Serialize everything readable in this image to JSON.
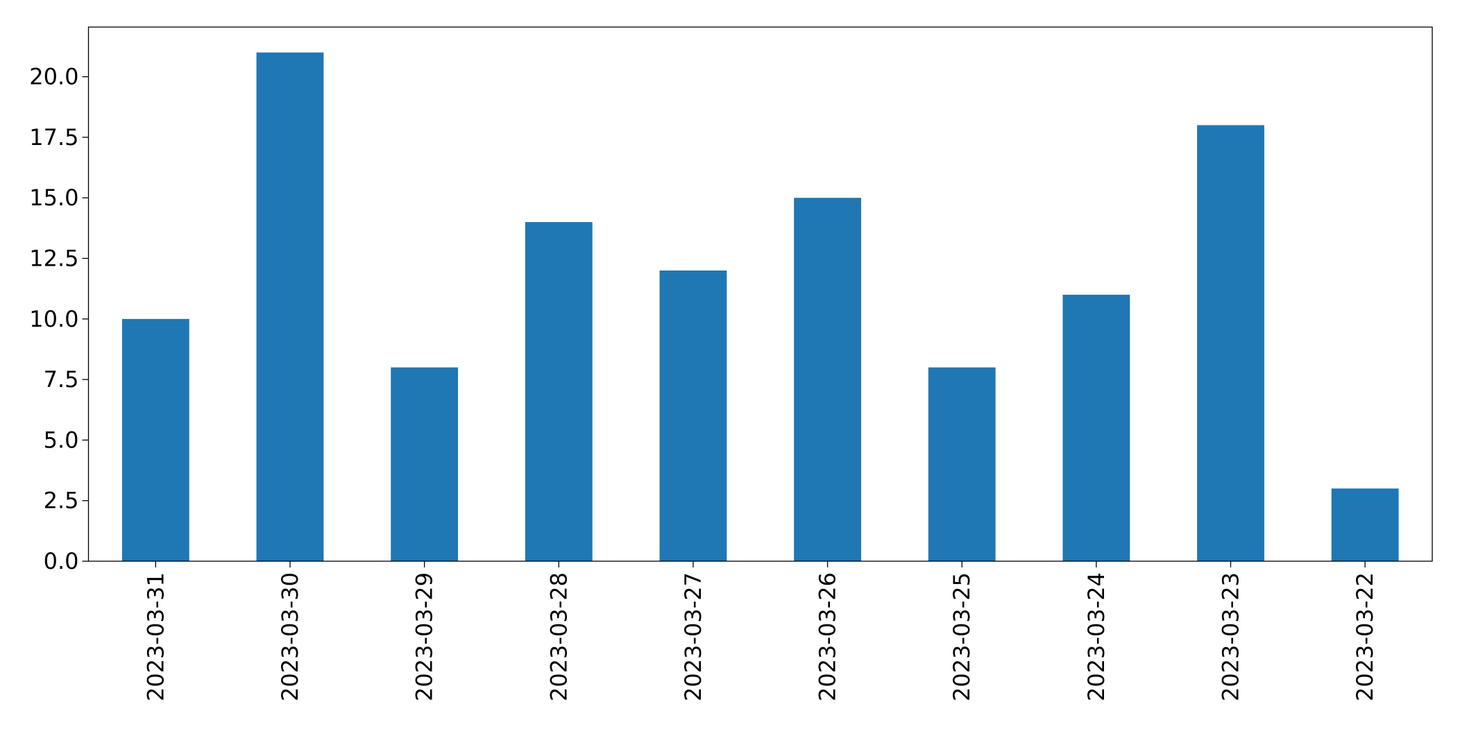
{
  "chart_data": {
    "type": "bar",
    "categories": [
      "2023-03-31",
      "2023-03-30",
      "2023-03-29",
      "2023-03-28",
      "2023-03-27",
      "2023-03-26",
      "2023-03-25",
      "2023-03-24",
      "2023-03-23",
      "2023-03-22"
    ],
    "values": [
      10,
      21,
      8,
      14,
      12,
      15,
      8,
      11,
      18,
      3
    ],
    "color": "#1f77b4",
    "ylim": [
      0,
      22.05
    ],
    "yticks": [
      {
        "value": 0,
        "label": "0.0"
      },
      2.5,
      {
        "value": 5,
        "label": "5.0"
      },
      7.5,
      {
        "value": 10,
        "label": "10.0"
      },
      12.5,
      {
        "value": 15,
        "label": "15.0"
      },
      17.5,
      {
        "value": 20,
        "label": "20.0"
      }
    ],
    "grid": false
  }
}
